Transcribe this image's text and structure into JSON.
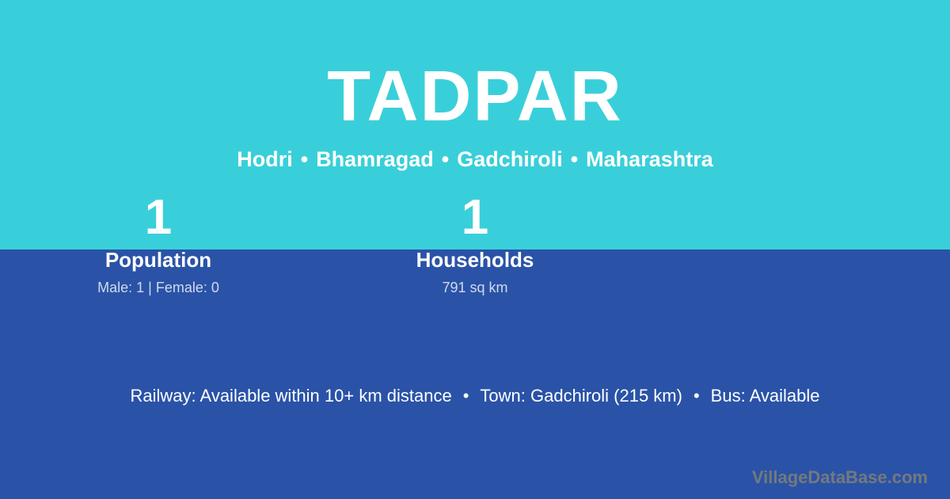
{
  "card": {
    "title": "TADPAR",
    "breadcrumb": {
      "items": [
        "Hodri",
        "Bhamragad",
        "Gadchiroli",
        "Maharashtra"
      ],
      "separator": "•"
    },
    "stats": [
      {
        "value": "1",
        "label": "Population",
        "detail": "Male: 1 | Female: 0"
      },
      {
        "value": "1",
        "label": "Households",
        "detail": "791 sq km"
      }
    ],
    "services": {
      "items": [
        "Railway: Available within 10+ km distance",
        "Town: Gadchiroli (215 km)",
        "Bus: Available"
      ],
      "separator": "•"
    },
    "watermark": "VillageDataBase.com",
    "colors": {
      "top_background": "#39CFDA",
      "bottom_background": "#2A53A7",
      "text": "#FFFFFF",
      "muted_text": "rgba(255,255,255,0.78)",
      "watermark": "#75797D"
    }
  }
}
